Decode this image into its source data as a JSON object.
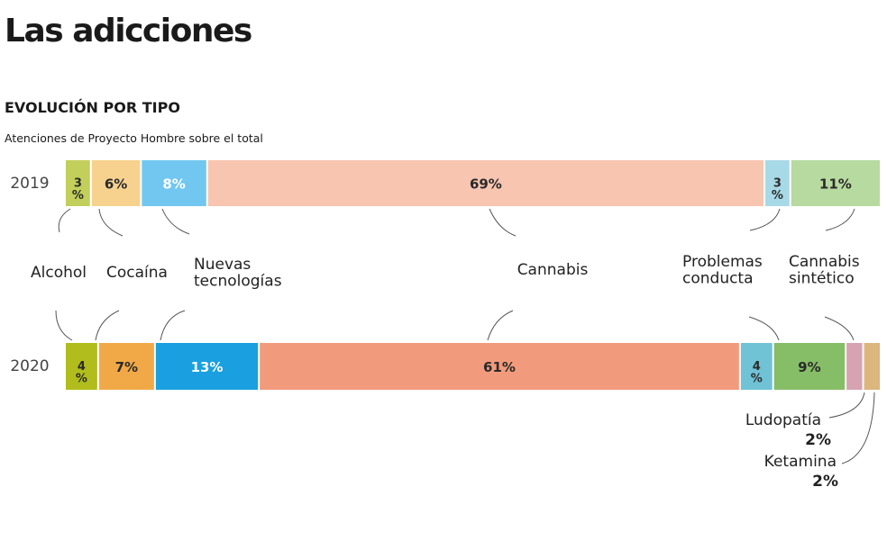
{
  "header": {
    "title": "Las adicciones",
    "subtitle": "EVOLUCIÓN POR TIPO",
    "note": "Atenciones de Proyecto Hombre sobre el total"
  },
  "chart_data": {
    "type": "bar",
    "orientation": "horizontal",
    "stacked": true,
    "unit": "%",
    "categories": [
      "2019",
      "2020"
    ],
    "series": [
      {
        "name": "Alcohol",
        "values": [
          3,
          4
        ],
        "colors": [
          "#c2cf5a",
          "#b1bd1d"
        ]
      },
      {
        "name": "Cocaína",
        "values": [
          6,
          7
        ],
        "colors": [
          "#f7d28f",
          "#f1a947"
        ]
      },
      {
        "name": "Nuevas tecnologías",
        "values": [
          8,
          13
        ],
        "colors": [
          "#72c7f1",
          "#1aa0e0"
        ]
      },
      {
        "name": "Cannabis",
        "values": [
          69,
          61
        ],
        "colors": [
          "#f7c5b0",
          "#f29b7c"
        ]
      },
      {
        "name": "Problemas conducta",
        "values": [
          3,
          4
        ],
        "colors": [
          "#a8d9e6",
          "#70c2d5"
        ]
      },
      {
        "name": "Cannabis sintético",
        "values": [
          11,
          9
        ],
        "colors": [
          "#b7daa0",
          "#86bd67"
        ]
      },
      {
        "name": "Ludopatía",
        "values": [
          null,
          2
        ],
        "colors": [
          null,
          "#d7a2b1"
        ]
      },
      {
        "name": "Ketamina",
        "values": [
          null,
          2
        ],
        "colors": [
          null,
          "#dbb67d"
        ]
      }
    ],
    "legend_placement": "between-bars"
  },
  "labels": {
    "bar_2019": [
      "3\n%",
      "6%",
      "8%",
      "69%",
      "3\n%",
      "11%"
    ],
    "bar_2020": [
      "4\n%",
      "7%",
      "13%",
      "61%",
      "4\n%",
      "9%",
      "",
      ""
    ],
    "ludopatia_name": "Ludopatía",
    "ludopatia_value": "2%",
    "ketamina_name": "Ketamina",
    "ketamina_value": "2%"
  }
}
